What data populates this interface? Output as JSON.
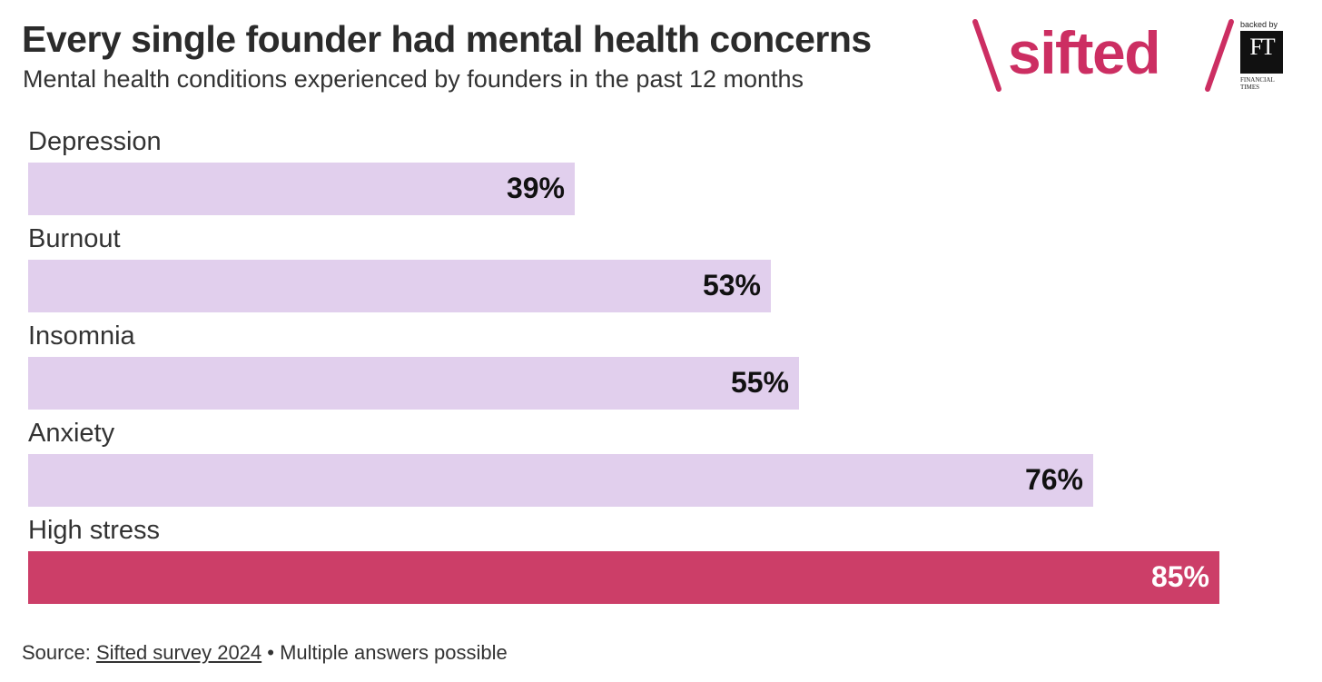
{
  "header": {
    "title": "Every single founder had mental health concerns",
    "subtitle": "Mental health conditions experienced by founders in the past 12 months"
  },
  "logo": {
    "brand": "sifted",
    "backed_by": "backed by",
    "ft_mark": "FT",
    "ft_name_line1": "FINANCIAL",
    "ft_name_line2": "TIMES",
    "brand_color": "#cc2e62"
  },
  "chart_data": {
    "type": "bar",
    "orientation": "horizontal",
    "title": "Every single founder had mental health concerns",
    "subtitle": "Mental health conditions experienced by founders in the past 12 months",
    "categories": [
      "Depression",
      "Burnout",
      "Insomnia",
      "Anxiety",
      "High stress"
    ],
    "values": [
      39,
      53,
      55,
      76,
      85
    ],
    "value_labels": [
      "39%",
      "53%",
      "55%",
      "76%",
      "85%"
    ],
    "unit": "%",
    "xlim": [
      0,
      85
    ],
    "highlight_category": "High stress",
    "colors": {
      "default_bar": "#e1cfed",
      "highlight_bar": "#cc3e68"
    },
    "grid": false,
    "legend": "none"
  },
  "footer": {
    "source_prefix": "Source: ",
    "source_link": "Sifted survey 2024",
    "source_suffix": " • Multiple answers possible"
  }
}
